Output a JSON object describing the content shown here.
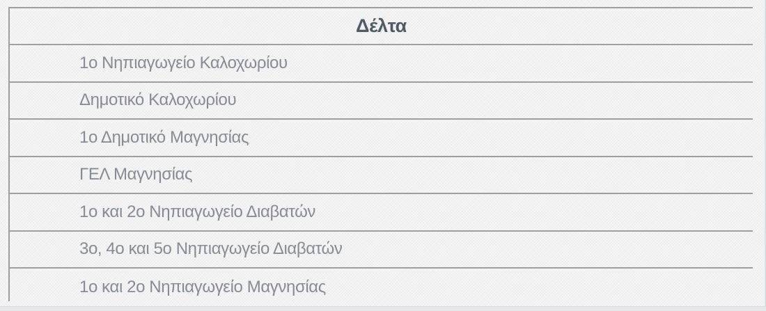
{
  "table": {
    "header": "Δέλτα",
    "rows": [
      "1ο Νηπιαγωγείο Καλοχωρίου",
      "Δημοτικό Καλοχωρίου",
      "1ο Δημοτικό Μαγνησίας",
      "ΓΕΛ Μαγνησίας",
      "1ο και 2ο Νηπιαγωγείο Διαβατών",
      "3ο, 4ο και 5ο Νηπιαγωγείο Διαβατών",
      "1ο και 2ο Νηπιαγωγείο Μαγνησίας"
    ]
  },
  "colors": {
    "page_background": "#f1f1f2",
    "border": "#9da0a3",
    "header_text": "#4f5a64",
    "row_text": "#878c94"
  }
}
